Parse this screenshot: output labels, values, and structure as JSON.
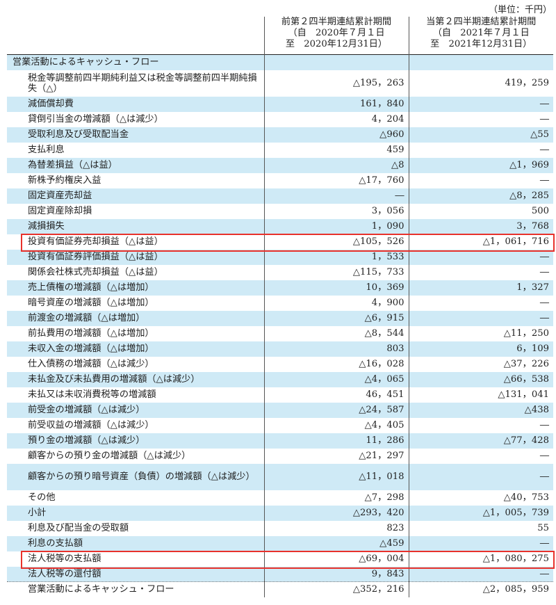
{
  "unit_label": "（単位：千円）",
  "headers": {
    "prev": [
      "前第２四半期連結累計期間",
      "（自　2020年７月１日",
      "至　2020年12月31日）"
    ],
    "cur": [
      "当第２四半期連結累計期間",
      "（自　2021年７月１日",
      "至　2021年12月31日）"
    ]
  },
  "rows": [
    {
      "label": "営業活動によるキャッシュ・フロー",
      "prev": "",
      "cur": "",
      "section": true
    },
    {
      "label": "税金等調整前四半期純利益又は税金等調整前四半期純損失（△）",
      "prev": "△195，263",
      "cur": "419，259",
      "tall": true
    },
    {
      "label": "減価償却費",
      "prev": "161，840",
      "cur": "―"
    },
    {
      "label": "貸倒引当金の増減額（△は減少）",
      "prev": "4，204",
      "cur": "―"
    },
    {
      "label": "受取利息及び受取配当金",
      "prev": "△960",
      "cur": "△55"
    },
    {
      "label": "支払利息",
      "prev": "459",
      "cur": "―"
    },
    {
      "label": "為替差損益（△は益）",
      "prev": "△8",
      "cur": "△1，969"
    },
    {
      "label": "新株予約権戻入益",
      "prev": "△17，760",
      "cur": "―"
    },
    {
      "label": "固定資産売却益",
      "prev": "―",
      "cur": "△8，285"
    },
    {
      "label": "固定資産除却損",
      "prev": "3，056",
      "cur": "500"
    },
    {
      "label": "減損損失",
      "prev": "1，090",
      "cur": "3，768"
    },
    {
      "label": "投資有価証券売却損益（△は益）",
      "prev": "△105，526",
      "cur": "△1，061，716",
      "highlight": true
    },
    {
      "label": "投資有価証券評価損益（△は益）",
      "prev": "1，533",
      "cur": "―"
    },
    {
      "label": "関係会社株式売却損益（△は益）",
      "prev": "△115，733",
      "cur": "―"
    },
    {
      "label": "売上債権の増減額（△は増加）",
      "prev": "10，369",
      "cur": "1，327"
    },
    {
      "label": "暗号資産の増減額（△は増加）",
      "prev": "4，900",
      "cur": "―"
    },
    {
      "label": "前渡金の増減額（△は増加）",
      "prev": "△6，915",
      "cur": "―"
    },
    {
      "label": "前払費用の増減額（△は増加）",
      "prev": "△8，544",
      "cur": "△11，250"
    },
    {
      "label": "未収入金の増減額（△は増加）",
      "prev": "803",
      "cur": "6，109"
    },
    {
      "label": "仕入債務の増減額（△は減少）",
      "prev": "△16，028",
      "cur": "△37，226"
    },
    {
      "label": "未払金及び未払費用の増減額（△は減少）",
      "prev": "△4，065",
      "cur": "△66，538"
    },
    {
      "label": "未払又は未収消費税等の増減額",
      "prev": "46，451",
      "cur": "△131，041"
    },
    {
      "label": "前受金の増減額（△は減少）",
      "prev": "△24，587",
      "cur": "△438"
    },
    {
      "label": "前受収益の増減額（△は減少）",
      "prev": "△4，405",
      "cur": "―"
    },
    {
      "label": "預り金の増減額（△は減少）",
      "prev": "11，286",
      "cur": "△77，428"
    },
    {
      "label": "顧客からの預り金の増減額（△は減少）",
      "prev": "△21，297",
      "cur": "―"
    },
    {
      "label": "顧客からの預り暗号資産（負債）の増減額（△は減少）",
      "prev": "△11，018",
      "cur": "―",
      "tall": true
    },
    {
      "label": "その他",
      "prev": "△7，298",
      "cur": "△40，753"
    },
    {
      "label": "小計",
      "prev": "△293，420",
      "cur": "△1，005，739"
    },
    {
      "label": "利息及び配当金の受取額",
      "prev": "823",
      "cur": "55"
    },
    {
      "label": "利息の支払額",
      "prev": "△459",
      "cur": "―"
    },
    {
      "label": "法人税等の支払額",
      "prev": "△69，004",
      "cur": "△1，080，275",
      "highlight": true
    },
    {
      "label": "法人税等の還付額",
      "prev": "9，843",
      "cur": "―"
    },
    {
      "label": "営業活動によるキャッシュ・フロー",
      "prev": "△352，216",
      "cur": "△2，085，959"
    }
  ],
  "colors": {
    "shade": "#cfeaf6",
    "highlight": "#e8312b"
  }
}
